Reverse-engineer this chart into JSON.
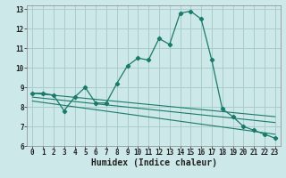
{
  "xlabel": "Humidex (Indice chaleur)",
  "bg_color": "#cce8e8",
  "grid_color": "#aacccc",
  "line_color": "#1a7a6a",
  "xlim": [
    -0.5,
    23.5
  ],
  "ylim": [
    6,
    13.2
  ],
  "xticks": [
    0,
    1,
    2,
    3,
    4,
    5,
    6,
    7,
    8,
    9,
    10,
    11,
    12,
    13,
    14,
    15,
    16,
    17,
    18,
    19,
    20,
    21,
    22,
    23
  ],
  "yticks": [
    6,
    7,
    8,
    9,
    10,
    11,
    12,
    13
  ],
  "series1_x": [
    0,
    1,
    2,
    3,
    4,
    5,
    6,
    7,
    8,
    9,
    10,
    11,
    12,
    13,
    14,
    15,
    16,
    17,
    18,
    19,
    20,
    21,
    22,
    23
  ],
  "series1_y": [
    8.7,
    8.7,
    8.6,
    7.8,
    8.5,
    9.0,
    8.2,
    8.2,
    9.2,
    10.1,
    10.5,
    10.4,
    11.5,
    11.2,
    12.8,
    12.9,
    12.5,
    10.4,
    7.9,
    7.5,
    7.0,
    6.8,
    6.6,
    6.4
  ],
  "series2_x": [
    0,
    23
  ],
  "series2_y": [
    8.7,
    7.5
  ],
  "series3_x": [
    0,
    23
  ],
  "series3_y": [
    8.5,
    7.2
  ],
  "series4_x": [
    0,
    23
  ],
  "series4_y": [
    8.3,
    6.6
  ],
  "tick_fontsize": 5.5,
  "xlabel_fontsize": 7.0
}
